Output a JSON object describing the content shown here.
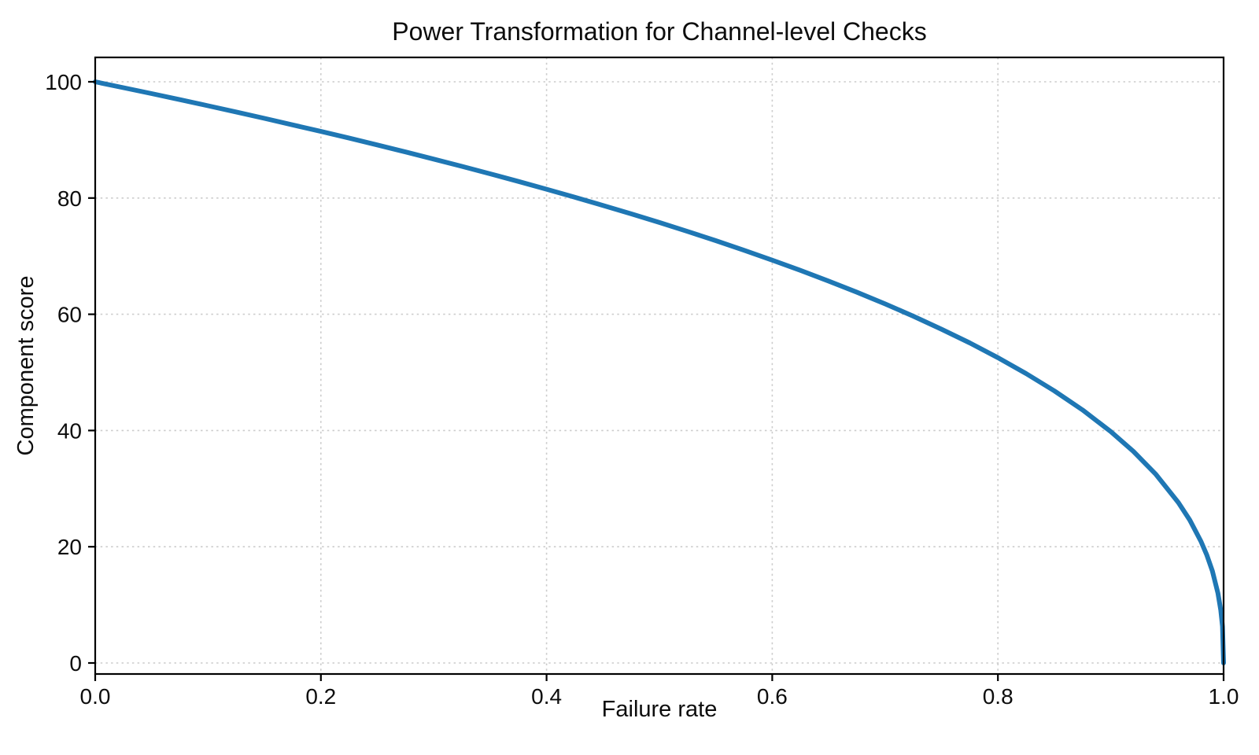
{
  "figure": {
    "background": "#ffffff"
  },
  "chart_data": {
    "type": "line",
    "title": "Power Transformation for Channel-level Checks",
    "xlabel": "Failure rate",
    "ylabel": "Component score",
    "xlim": [
      0,
      1
    ],
    "ylim": [
      0,
      100
    ],
    "xticks": [
      0,
      0.2,
      0.4,
      0.6,
      0.8,
      1.0
    ],
    "xtick_labels": [
      "0.0",
      "0.2",
      "0.4",
      "0.6",
      "0.8",
      "1.0"
    ],
    "yticks": [
      0,
      20,
      40,
      60,
      80,
      100
    ],
    "ytick_labels": [
      "0",
      "20",
      "40",
      "60",
      "80",
      "100"
    ],
    "grid": true,
    "grid_style": "dotted",
    "grid_color": "#cccccc",
    "legend": "none",
    "series": [
      {
        "name": "component-score-curve",
        "color": "#1f77b4",
        "line_width": 6,
        "power_exponent": 0.4,
        "x": [
          0,
          0.025,
          0.05,
          0.075,
          0.1,
          0.125,
          0.15,
          0.175,
          0.2,
          0.225,
          0.25,
          0.275,
          0.3,
          0.325,
          0.35,
          0.375,
          0.4,
          0.425,
          0.45,
          0.475,
          0.5,
          0.525,
          0.55,
          0.575,
          0.6,
          0.625,
          0.65,
          0.675,
          0.7,
          0.725,
          0.75,
          0.775,
          0.8,
          0.825,
          0.85,
          0.875,
          0.9,
          0.92,
          0.94,
          0.96,
          0.97,
          0.98,
          0.985,
          0.99,
          0.995,
          0.9975,
          0.999,
          1
        ],
        "y": [
          100,
          98.99,
          97.97,
          96.93,
          95.87,
          94.8,
          93.71,
          92.59,
          91.46,
          90.31,
          89.13,
          87.93,
          86.7,
          85.45,
          84.17,
          82.86,
          81.52,
          80.14,
          78.73,
          77.28,
          75.79,
          74.25,
          72.66,
          71.02,
          69.31,
          67.55,
          65.71,
          63.79,
          61.78,
          59.67,
          57.43,
          55.07,
          52.53,
          49.8,
          46.82,
          43.53,
          39.81,
          36.41,
          32.45,
          27.59,
          24.6,
          20.91,
          18.64,
          15.85,
          12.01,
          9.1,
          6.31,
          0
        ]
      }
    ]
  }
}
